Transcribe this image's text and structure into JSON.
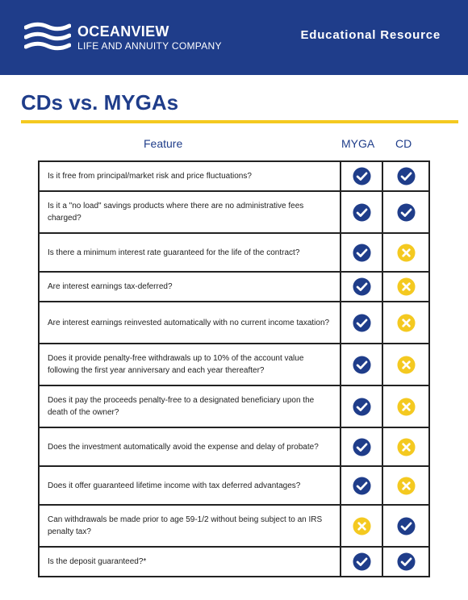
{
  "header": {
    "company_name": "OCEANVIEW",
    "company_sub": "LIFE AND ANNUITY COMPANY",
    "resource_label": "Educational Resource"
  },
  "title": "CDs vs. MYGAs",
  "table": {
    "columns": [
      "Feature",
      "MYGA",
      "CD"
    ],
    "rows": [
      {
        "feature": "Is it free from principal/market risk and price fluctuations?",
        "myga": "check",
        "cd": "check"
      },
      {
        "feature": "Is it a \"no load\" savings products where there are no administrative fees charged?",
        "myga": "check",
        "cd": "check"
      },
      {
        "feature": "Is there a minimum interest rate guaranteed for the life of the contract?",
        "myga": "check",
        "cd": "x"
      },
      {
        "feature": "Are interest earnings tax-deferred?",
        "myga": "check",
        "cd": "x"
      },
      {
        "feature": "Are interest earnings reinvested automatically with no current income taxation?",
        "myga": "check",
        "cd": "x"
      },
      {
        "feature": "Does it provide penalty-free withdrawals up to 10% of the account value following the first year anniversary and each year thereafter?",
        "myga": "check",
        "cd": "x"
      },
      {
        "feature": "Does it pay the proceeds penalty-free to a designated beneficiary upon the death of the owner?",
        "myga": "check",
        "cd": "x"
      },
      {
        "feature": "Does the investment automatically avoid the expense and delay of probate?",
        "myga": "check",
        "cd": "x"
      },
      {
        "feature": "Does it offer guaranteed lifetime income with tax deferred advantages?",
        "myga": "check",
        "cd": "x"
      },
      {
        "feature": "Can withdrawals be made prior to age 59-1/2 without being subject to an IRS penalty tax?",
        "myga": "x",
        "cd": "check"
      },
      {
        "feature": "Is the deposit guaranteed?*",
        "myga": "check",
        "cd": "check"
      }
    ]
  },
  "colors": {
    "brand_navy": "#1f3d8a",
    "accent_yellow": "#f4c920",
    "check_fill": "#1f3d8a",
    "x_fill": "#f4c920"
  },
  "icons": {
    "check": "check-circle-icon",
    "x": "x-circle-icon"
  }
}
